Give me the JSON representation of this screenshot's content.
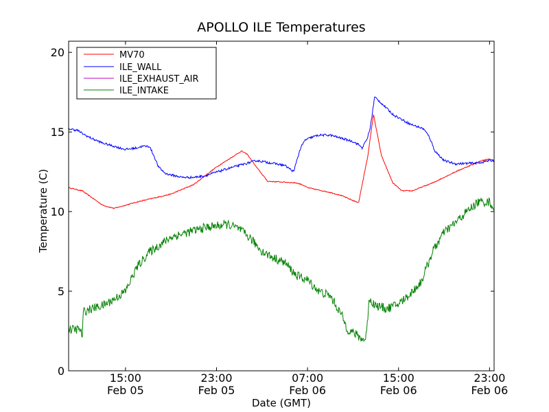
{
  "chart_data": {
    "type": "line",
    "title": "APOLLO ILE Temperatures",
    "xlabel": "Date (GMT)",
    "ylabel": "Temperature (C)",
    "x_unit": "hours",
    "xlim": [
      10.0,
      47.4
    ],
    "ylim": [
      0,
      20.7
    ],
    "yticks": [
      0,
      5,
      10,
      15,
      20
    ],
    "xticks": [
      {
        "x": 15,
        "time": "15:00",
        "date": "Feb 05"
      },
      {
        "x": 23,
        "time": "23:00",
        "date": "Feb 05"
      },
      {
        "x": 31,
        "time": "07:00",
        "date": "Feb 06"
      },
      {
        "x": 39,
        "time": "15:00",
        "date": "Feb 06"
      },
      {
        "x": 47,
        "time": "23:00",
        "date": "Feb 06"
      }
    ],
    "grid": false,
    "legend_position": "top-left",
    "series": [
      {
        "name": "MV70",
        "color": "#ff0000",
        "noise": 0.03,
        "points": [
          [
            10.0,
            11.5
          ],
          [
            11.2,
            11.3
          ],
          [
            13.0,
            10.4
          ],
          [
            14.0,
            10.2
          ],
          [
            16.0,
            10.6
          ],
          [
            19.0,
            11.1
          ],
          [
            21.0,
            11.7
          ],
          [
            23.0,
            12.8
          ],
          [
            25.2,
            13.8
          ],
          [
            25.7,
            13.6
          ],
          [
            26.5,
            12.8
          ],
          [
            27.5,
            11.9
          ],
          [
            29.0,
            11.85
          ],
          [
            30.0,
            11.8
          ],
          [
            30.5,
            11.7
          ],
          [
            31.0,
            11.5
          ],
          [
            33.0,
            11.2
          ],
          [
            34.0,
            11.0
          ],
          [
            35.3,
            10.6
          ],
          [
            35.5,
            10.6
          ],
          [
            36.3,
            13.5
          ],
          [
            36.8,
            16.1
          ],
          [
            37.5,
            13.5
          ],
          [
            38.5,
            11.8
          ],
          [
            39.3,
            11.3
          ],
          [
            40.2,
            11.3
          ],
          [
            42.0,
            11.8
          ],
          [
            44.0,
            12.5
          ],
          [
            46.3,
            13.2
          ],
          [
            47.0,
            13.3
          ],
          [
            47.4,
            13.2
          ]
        ]
      },
      {
        "name": "ILE_WALL",
        "color": "#0000ff",
        "noise": 0.07,
        "points": [
          [
            10.0,
            15.2
          ],
          [
            10.8,
            15.1
          ],
          [
            11.2,
            14.9
          ],
          [
            12.0,
            14.6
          ],
          [
            13.0,
            14.3
          ],
          [
            14.0,
            14.1
          ],
          [
            15.0,
            13.9
          ],
          [
            16.0,
            14.0
          ],
          [
            16.5,
            14.1
          ],
          [
            17.1,
            14.1
          ],
          [
            17.5,
            13.5
          ],
          [
            17.9,
            12.8
          ],
          [
            18.5,
            12.4
          ],
          [
            19.0,
            12.3
          ],
          [
            20.0,
            12.15
          ],
          [
            21.0,
            12.15
          ],
          [
            22.0,
            12.25
          ],
          [
            24.0,
            12.7
          ],
          [
            26.0,
            13.1
          ],
          [
            26.5,
            13.2
          ],
          [
            27.0,
            13.15
          ],
          [
            29.0,
            12.9
          ],
          [
            29.6,
            12.6
          ],
          [
            29.8,
            12.5
          ],
          [
            30.0,
            13.1
          ],
          [
            30.4,
            14.0
          ],
          [
            30.8,
            14.5
          ],
          [
            31.5,
            14.7
          ],
          [
            32.0,
            14.8
          ],
          [
            33.0,
            14.8
          ],
          [
            35.0,
            14.4
          ],
          [
            35.5,
            14.2
          ],
          [
            35.8,
            14.0
          ],
          [
            36.2,
            14.5
          ],
          [
            36.5,
            15.2
          ],
          [
            36.9,
            17.2
          ],
          [
            37.5,
            16.8
          ],
          [
            38.5,
            16.1
          ],
          [
            40.0,
            15.5
          ],
          [
            41.2,
            15.2
          ],
          [
            41.7,
            14.7
          ],
          [
            42.2,
            13.8
          ],
          [
            43.0,
            13.2
          ],
          [
            44.0,
            13.0
          ],
          [
            46.0,
            13.05
          ],
          [
            47.0,
            13.2
          ],
          [
            47.4,
            13.2
          ]
        ]
      },
      {
        "name": "ILE_EXHAUST_AIR",
        "color": "#bf00bf",
        "noise": 0,
        "points": []
      },
      {
        "name": "ILE_INTAKE",
        "color": "#008000",
        "noise": 0.28,
        "points": [
          [
            10.0,
            2.6
          ],
          [
            11.0,
            2.6
          ],
          [
            11.2,
            2.2
          ],
          [
            11.3,
            3.7
          ],
          [
            12.0,
            3.9
          ],
          [
            13.0,
            4.1
          ],
          [
            14.0,
            4.5
          ],
          [
            15.0,
            5.0
          ],
          [
            16.0,
            6.5
          ],
          [
            17.0,
            7.4
          ],
          [
            18.0,
            7.9
          ],
          [
            19.0,
            8.4
          ],
          [
            20.0,
            8.6
          ],
          [
            21.0,
            8.8
          ],
          [
            22.0,
            9.0
          ],
          [
            23.0,
            9.1
          ],
          [
            24.0,
            9.2
          ],
          [
            25.0,
            8.9
          ],
          [
            26.0,
            8.3
          ],
          [
            27.0,
            7.5
          ],
          [
            28.0,
            7.1
          ],
          [
            29.0,
            6.8
          ],
          [
            30.0,
            6.0
          ],
          [
            31.0,
            5.7
          ],
          [
            32.0,
            5.0
          ],
          [
            33.0,
            4.7
          ],
          [
            34.0,
            3.5
          ],
          [
            34.5,
            2.6
          ],
          [
            35.0,
            2.4
          ],
          [
            36.0,
            1.9
          ],
          [
            36.2,
            2.4
          ],
          [
            36.4,
            4.5
          ],
          [
            37.0,
            4.1
          ],
          [
            38.0,
            3.9
          ],
          [
            39.0,
            4.2
          ],
          [
            40.0,
            4.8
          ],
          [
            41.0,
            5.6
          ],
          [
            42.0,
            7.5
          ],
          [
            43.0,
            8.7
          ],
          [
            44.0,
            9.3
          ],
          [
            45.0,
            10.0
          ],
          [
            46.0,
            10.6
          ],
          [
            47.0,
            10.6
          ],
          [
            47.4,
            10.2
          ]
        ]
      }
    ]
  }
}
